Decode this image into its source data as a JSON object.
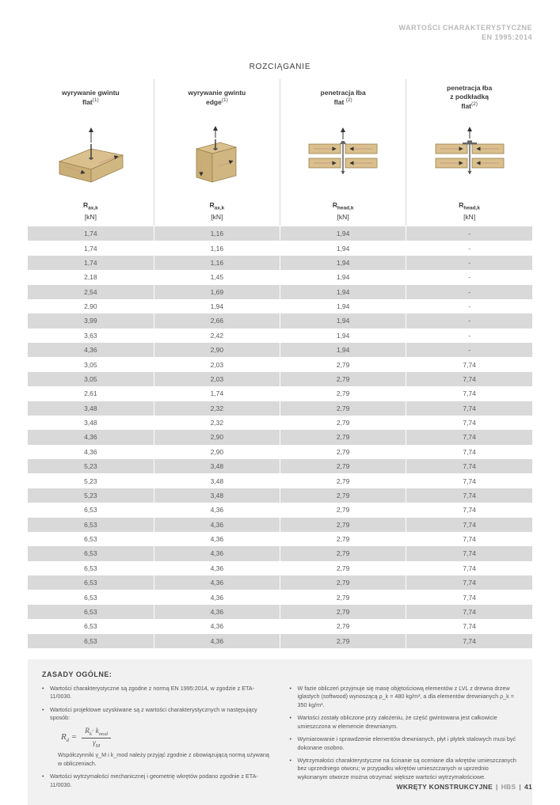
{
  "corner": {
    "l1": "WARTOŚCI CHARAKTERYSTYCZNE",
    "l2": "EN 1995:2014"
  },
  "section_title": "ROZCIĄGANIE",
  "headers": [
    {
      "title": "wyrywanie gwintu",
      "sub": "flat",
      "sup": "(1)"
    },
    {
      "title": "wyrywanie gwintu",
      "sub": "edge",
      "sup": "(1)"
    },
    {
      "title": "penetracja łba",
      "sub": "flat ",
      "sup": "(2)"
    },
    {
      "title": "penetracja łba",
      "sub_pre": "z podkładką",
      "sub": "flat",
      "sup": "(2)"
    }
  ],
  "symbols": [
    {
      "base": "R",
      "sub": "ax,k"
    },
    {
      "base": "R",
      "sub": "ax,k"
    },
    {
      "base": "R",
      "sub": "head,k"
    },
    {
      "base": "R",
      "sub": "head,k"
    }
  ],
  "unit": "[kN]",
  "diagrams": {
    "wood_fill": "#d9c08c",
    "wood_stroke": "#9a8050",
    "arrow_stroke": "#333333"
  },
  "rows": [
    [
      "1,74",
      "1,16",
      "1,94",
      "-"
    ],
    [
      "1,74",
      "1,16",
      "1,94",
      "-"
    ],
    [
      "1,74",
      "1,16",
      "1,94",
      "-"
    ],
    [
      "2,18",
      "1,45",
      "1,94",
      "-"
    ],
    [
      "2,54",
      "1,69",
      "1,94",
      "-"
    ],
    [
      "2,90",
      "1,94",
      "1,94",
      "-"
    ],
    [
      "3,99",
      "2,66",
      "1,94",
      "-"
    ],
    [
      "3,63",
      "2,42",
      "1,94",
      "-"
    ],
    [
      "4,36",
      "2,90",
      "1,94",
      "-"
    ],
    [
      "3,05",
      "2,03",
      "2,79",
      "7,74"
    ],
    [
      "3,05",
      "2,03",
      "2,79",
      "7,74"
    ],
    [
      "2,61",
      "1,74",
      "2,79",
      "7,74"
    ],
    [
      "3,48",
      "2,32",
      "2,79",
      "7,74"
    ],
    [
      "3,48",
      "2,32",
      "2,79",
      "7,74"
    ],
    [
      "4,36",
      "2,90",
      "2,79",
      "7,74"
    ],
    [
      "4,36",
      "2,90",
      "2,79",
      "7,74"
    ],
    [
      "5,23",
      "3,48",
      "2,79",
      "7,74"
    ],
    [
      "5,23",
      "3,48",
      "2,79",
      "7,74"
    ],
    [
      "5,23",
      "3,48",
      "2,79",
      "7,74"
    ],
    [
      "6,53",
      "4,36",
      "2,79",
      "7,74"
    ],
    [
      "6,53",
      "4,36",
      "2,79",
      "7,74"
    ],
    [
      "6,53",
      "4,36",
      "2,79",
      "7,74"
    ],
    [
      "6,53",
      "4,36",
      "2,79",
      "7,74"
    ],
    [
      "6,53",
      "4,36",
      "2,79",
      "7,74"
    ],
    [
      "6,53",
      "4,36",
      "2,79",
      "7,74"
    ],
    [
      "6,53",
      "4,36",
      "2,79",
      "7,74"
    ],
    [
      "6,53",
      "4,36",
      "2,79",
      "7,74"
    ],
    [
      "6,53",
      "4,36",
      "2,79",
      "7,74"
    ],
    [
      "6,53",
      "4,36",
      "2,79",
      "7,74"
    ]
  ],
  "notes": {
    "title": "ZASADY OGÓLNE:",
    "left": [
      "Wartości charakterystyczne są zgodne z normą EN 1995:2014, w zgodzie z ETA-11/0030.",
      "Wartości projektowe uzyskiwane są z wartości charakterystycznych w następujący sposób:"
    ],
    "left_after_formula": "Współczynniki γ_M i k_mod należy przyjąć zgodnie z obowiązującą normą używaną w obliczeniach.",
    "left2": [
      "Wartości wytrzymałości mechanicznej i geometrię wkrętów podano zgodnie z ETA-11/0030."
    ],
    "right": [
      "W fazie obliczeń przyjmuje się masę objętościową elementów z LVL z drewna drzew iglastych (softwood) wynoszącą ρ_k = 480 kg/m³, a dla elementów drewnianych ρ_k = 350 kg/m³.",
      "Wartości zostały obliczone przy założeniu, że część gwintowana jest całkowicie umieszczona w elemencie drewnianym.",
      "Wymiarowanie i sprawdzenie elementów drewnianych, płyt i płytek stalowych musi być dokonane osobno.",
      "Wytrzymałości charakterystyczne na ścinanie są oceniane dla wkrętów umieszczanych bez uprzedniego otworu; w przypadku wkrętów umieszczanych w uprzednio wykonanym otworze można otrzymać większe wartości wytrzymałościowe."
    ],
    "formula": {
      "lhs": "R",
      "lhs_sub": "d",
      "num_a": "R",
      "num_a_sub": "k",
      "num_b": "k",
      "num_b_sub": "mod",
      "den": "γ",
      "den_sub": "M"
    }
  },
  "footer": {
    "label": "WKRĘTY KONSTRUKCYJNE",
    "code": "HBS",
    "page": "41"
  }
}
